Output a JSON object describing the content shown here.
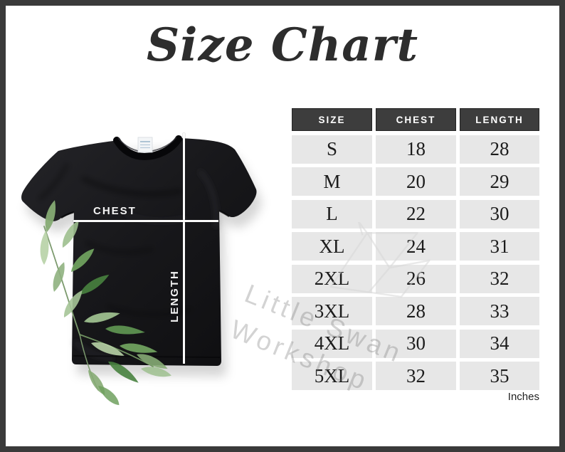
{
  "title": "Size Chart",
  "unit_note": "Inches",
  "shirt": {
    "chest_label": "CHEST",
    "length_label": "LENGTH",
    "description": "black crew-neck t-shirt flat-lay with white measurement lines and watercolor leaf branch"
  },
  "watermark": {
    "line1": "Little Swan",
    "line2": "Workshop",
    "icon": "origami-swan-icon"
  },
  "table": {
    "columns": [
      "SIZE",
      "CHEST",
      "LENGTH"
    ]
  },
  "chart_data": {
    "type": "table",
    "title": "Size Chart",
    "columns": [
      "SIZE",
      "CHEST",
      "LENGTH"
    ],
    "rows": [
      [
        "S",
        18,
        28
      ],
      [
        "M",
        20,
        29
      ],
      [
        "L",
        22,
        30
      ],
      [
        "XL",
        24,
        31
      ],
      [
        "2XL",
        26,
        32
      ],
      [
        "3XL",
        28,
        33
      ],
      [
        "4XL",
        30,
        34
      ],
      [
        "5XL",
        32,
        35
      ]
    ],
    "units": "Inches",
    "legend": false,
    "grid": false
  },
  "colors": {
    "frame": "#3a3a3a",
    "header_bg": "#3d3d3d",
    "header_text": "#ffffff",
    "cell_bg": "#e7e7e7",
    "cell_text": "#1c1c1c",
    "title_text": "#2d2d2d",
    "shirt": "#141416",
    "measure_line": "#fafafa",
    "leaf_greens": [
      "#9dbf8e",
      "#6fa05e",
      "#48823f",
      "#b7d2a6",
      "#86ab74"
    ],
    "watermark": "#cccccc"
  }
}
